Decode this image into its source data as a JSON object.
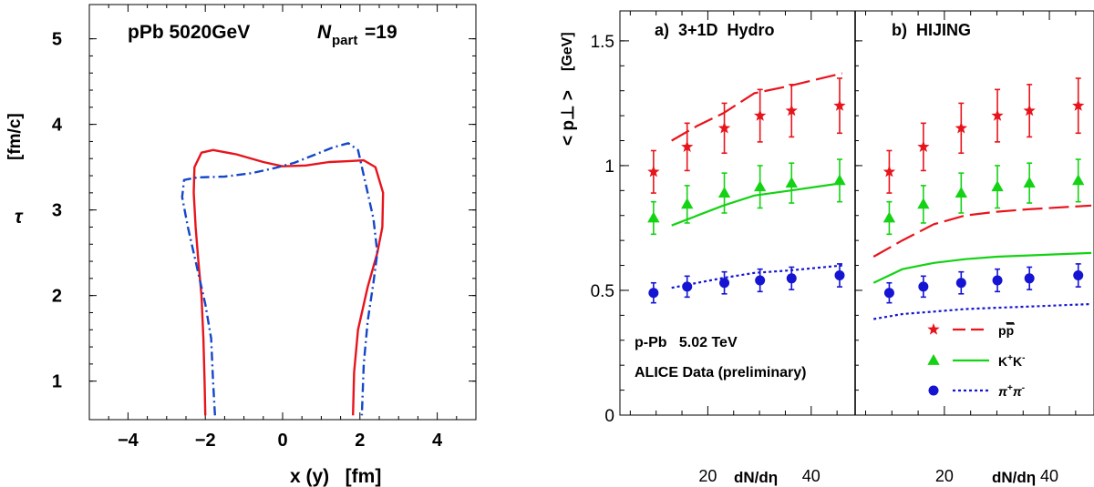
{
  "chart_data": [
    {
      "type": "line",
      "title_text": "pPb 5020GeV",
      "npart_label": "N",
      "npart_sub": "part",
      "npart_value": "=19",
      "xlabel": "x (y)   [fm]",
      "ylabel_symbol": "τ",
      "ylabel_unit": "[fm/c]",
      "xlim": [
        -5,
        5
      ],
      "ylim": [
        0.55,
        5.4
      ],
      "xticks": [
        -4,
        -2,
        0,
        2,
        4
      ],
      "yticks": [
        1,
        2,
        3,
        4,
        5
      ],
      "colors": {
        "x_profile": "#e8141c",
        "y_profile": "#1446c8"
      },
      "series": [
        {
          "style": "solid",
          "color": "#e8141c",
          "points": [
            [
              -2.0,
              0.6
            ],
            [
              -2.02,
              1.0
            ],
            [
              -2.05,
              1.5
            ],
            [
              -2.1,
              2.0
            ],
            [
              -2.18,
              2.4
            ],
            [
              -2.25,
              2.8
            ],
            [
              -2.3,
              3.2
            ],
            [
              -2.28,
              3.5
            ],
            [
              -2.1,
              3.67
            ],
            [
              -1.8,
              3.7
            ],
            [
              -1.2,
              3.65
            ],
            [
              -0.5,
              3.56
            ],
            [
              0.0,
              3.51
            ],
            [
              0.6,
              3.52
            ],
            [
              1.2,
              3.56
            ],
            [
              1.7,
              3.57
            ],
            [
              2.1,
              3.58
            ],
            [
              2.4,
              3.5
            ],
            [
              2.6,
              3.2
            ],
            [
              2.58,
              2.8
            ],
            [
              2.45,
              2.5
            ],
            [
              2.2,
              2.1
            ],
            [
              1.95,
              1.6
            ],
            [
              1.85,
              1.1
            ],
            [
              1.82,
              0.6
            ]
          ]
        },
        {
          "style": "dashdot",
          "color": "#1446c8",
          "points": [
            [
              -1.75,
              0.6
            ],
            [
              -1.8,
              1.0
            ],
            [
              -1.85,
              1.5
            ],
            [
              -2.0,
              1.9
            ],
            [
              -2.2,
              2.3
            ],
            [
              -2.45,
              2.8
            ],
            [
              -2.6,
              3.15
            ],
            [
              -2.55,
              3.35
            ],
            [
              -2.2,
              3.38
            ],
            [
              -1.5,
              3.39
            ],
            [
              -0.8,
              3.43
            ],
            [
              -0.2,
              3.49
            ],
            [
              0.3,
              3.55
            ],
            [
              0.8,
              3.64
            ],
            [
              1.3,
              3.73
            ],
            [
              1.7,
              3.78
            ],
            [
              1.95,
              3.7
            ],
            [
              2.15,
              3.3
            ],
            [
              2.35,
              2.9
            ],
            [
              2.45,
              2.5
            ],
            [
              2.35,
              2.15
            ],
            [
              2.2,
              1.7
            ],
            [
              2.1,
              1.2
            ],
            [
              2.05,
              0.6
            ]
          ]
        }
      ]
    },
    {
      "type": "scatter",
      "ylabel": "< p⊥ >",
      "ylabel_unit": "[GeV]",
      "xlabel": "dN/dη",
      "xlim": [
        3,
        48.5
      ],
      "ylim": [
        0,
        1.62
      ],
      "xticks": [
        20,
        40
      ],
      "yticks": [
        0,
        0.5,
        1,
        1.5
      ],
      "ytick_labels": [
        "0",
        "0.5",
        "1",
        "1.5"
      ],
      "colors": {
        "proton": "#e8141c",
        "kaon": "#14d214",
        "pion": "#1414d2"
      },
      "data_points": {
        "x": [
          9.5,
          16.0,
          23.2,
          30.1,
          36.2,
          45.5
        ],
        "proton": {
          "y": [
            0.975,
            1.075,
            1.15,
            1.2,
            1.22,
            1.24
          ],
          "err": [
            0.085,
            0.095,
            0.1,
            0.105,
            0.105,
            0.11
          ]
        },
        "kaon": {
          "y": [
            0.79,
            0.845,
            0.89,
            0.915,
            0.93,
            0.94
          ],
          "err": [
            0.065,
            0.075,
            0.08,
            0.085,
            0.08,
            0.085
          ]
        },
        "pion": {
          "y": [
            0.49,
            0.515,
            0.53,
            0.54,
            0.548,
            0.56
          ],
          "err": [
            0.04,
            0.042,
            0.044,
            0.045,
            0.045,
            0.046
          ]
        }
      },
      "panels": [
        {
          "label": "a)  3+1D  Hydro",
          "curves": {
            "proton": {
              "x": [
                13,
                18,
                23,
                29,
                36,
                46
              ],
              "y": [
                1.1,
                1.16,
                1.21,
                1.29,
                1.32,
                1.37
              ]
            },
            "kaon": {
              "x": [
                13,
                18,
                23,
                29,
                36,
                46
              ],
              "y": [
                0.76,
                0.8,
                0.84,
                0.88,
                0.9,
                0.93
              ]
            },
            "pion": {
              "x": [
                13,
                18,
                23,
                29,
                36,
                46
              ],
              "y": [
                0.51,
                0.53,
                0.55,
                0.57,
                0.58,
                0.6
              ]
            }
          },
          "note_line1": "p-Pb   5.02 TeV",
          "note_line2": "ALICE Data (preliminary)"
        },
        {
          "label": "b)  HIJING",
          "curves": {
            "proton": {
              "x": [
                6.5,
                12,
                18,
                24,
                30,
                36,
                48
              ],
              "y": [
                0.635,
                0.7,
                0.765,
                0.8,
                0.815,
                0.825,
                0.84
              ]
            },
            "kaon": {
              "x": [
                6.5,
                12,
                18,
                24,
                30,
                36,
                48
              ],
              "y": [
                0.53,
                0.585,
                0.61,
                0.625,
                0.635,
                0.64,
                0.65
              ]
            },
            "pion": {
              "x": [
                6.5,
                12,
                18,
                24,
                30,
                36,
                48
              ],
              "y": [
                0.385,
                0.405,
                0.415,
                0.425,
                0.43,
                0.435,
                0.445
              ]
            }
          },
          "legend": [
            {
              "species": "proton",
              "marker": "star",
              "line": "dashed",
              "label_main": "p",
              "label_bar": "p"
            },
            {
              "species": "kaon",
              "marker": "triangle",
              "line": "solid",
              "label_main": "K",
              "label_sup1": "+",
              "label_mid": "K",
              "label_sup2": "-"
            },
            {
              "species": "pion",
              "marker": "circle",
              "line": "dotted",
              "label_main": "π",
              "label_sup1": "+",
              "label_mid": "π",
              "label_sup2": "-"
            }
          ]
        }
      ]
    }
  ]
}
